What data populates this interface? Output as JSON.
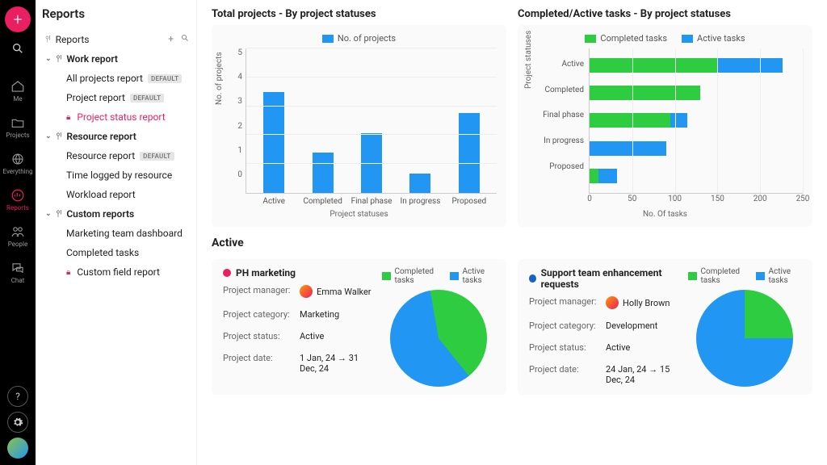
{
  "colors": {
    "green": "#2ecc40",
    "blue": "#2196f3",
    "pink": "#e91e63",
    "navy": "#1565c0"
  },
  "rail": {
    "items": [
      {
        "id": "me",
        "label": "Me"
      },
      {
        "id": "projects",
        "label": "Projects"
      },
      {
        "id": "everything",
        "label": "Everything"
      },
      {
        "id": "reports",
        "label": "Reports"
      },
      {
        "id": "people",
        "label": "People"
      },
      {
        "id": "chat",
        "label": "Chat"
      }
    ]
  },
  "sidebar": {
    "title": "Reports",
    "root": "Reports",
    "sections": [
      {
        "label": "Work report",
        "items": [
          {
            "label": "All projects report",
            "badge": "DEFAULT"
          },
          {
            "label": "Project report",
            "badge": "DEFAULT"
          },
          {
            "label": "Project status report",
            "locked": true,
            "active": true
          }
        ]
      },
      {
        "label": "Resource report",
        "items": [
          {
            "label": "Resource report",
            "badge": "DEFAULT"
          },
          {
            "label": "Time logged by resource"
          },
          {
            "label": "Workload report"
          }
        ]
      },
      {
        "label": "Custom reports",
        "items": [
          {
            "label": "Marketing team dashboard"
          },
          {
            "label": "Completed tasks"
          },
          {
            "label": "Custom field report",
            "locked": true
          }
        ]
      }
    ]
  },
  "chart1": {
    "title": "Total projects - By project statuses",
    "legend": "No. of projects",
    "ylabel": "No. of projects",
    "xlabel": "Project statuses",
    "ymax": 5,
    "ytick_step": 1,
    "categories": [
      "Active",
      "Completed",
      "Final phase",
      "In progress",
      "Proposed"
    ],
    "values": [
      3.9,
      1.55,
      2.3,
      0.75,
      3.1
    ],
    "bar_color": "#2196f3",
    "grid_color": "#eeeeee"
  },
  "chart2": {
    "title": "Completed/Active tasks - By project statuses",
    "legend": [
      {
        "label": "Completed tasks",
        "color": "#2ecc40"
      },
      {
        "label": "Active tasks",
        "color": "#2196f3"
      }
    ],
    "ylabel": "Project statuses",
    "xlabel": "No. Of tasks",
    "xmax": 250,
    "xtick_step": 50,
    "categories": [
      "Active",
      "Completed",
      "Final phase",
      "In progress",
      "Proposed"
    ],
    "series": [
      {
        "completed": 150,
        "active": 76
      },
      {
        "completed": 130,
        "active": 0
      },
      {
        "completed": 95,
        "active": 20
      },
      {
        "completed": 0,
        "active": 90
      },
      {
        "completed": 10,
        "active": 22
      }
    ]
  },
  "active": {
    "heading": "Active",
    "legend_completed": "Completed tasks",
    "legend_active": "Active tasks",
    "projects": [
      {
        "name": "PH marketing",
        "dot": "#e91e63",
        "manager": "Emma Walker",
        "category": "Marketing",
        "status": "Active",
        "date": "1 Jan, 24 → 31 Dec, 24",
        "pie": {
          "completed_pct": 42,
          "completed_color": "#2ecc40",
          "active_color": "#2196f3",
          "rotation_deg": -10
        }
      },
      {
        "name": "Support team enhancement requests",
        "dot": "#1565c0",
        "manager": "Holly Brown",
        "category": "Development",
        "status": "Active",
        "date": "24 Jan, 24 → 15 Dec, 24",
        "pie": {
          "completed_pct": 25,
          "completed_color": "#2ecc40",
          "active_color": "#2196f3",
          "rotation_deg": 0
        }
      }
    ],
    "labels": {
      "manager": "Project manager:",
      "category": "Project category:",
      "status": "Project status:",
      "date": "Project date:"
    }
  }
}
